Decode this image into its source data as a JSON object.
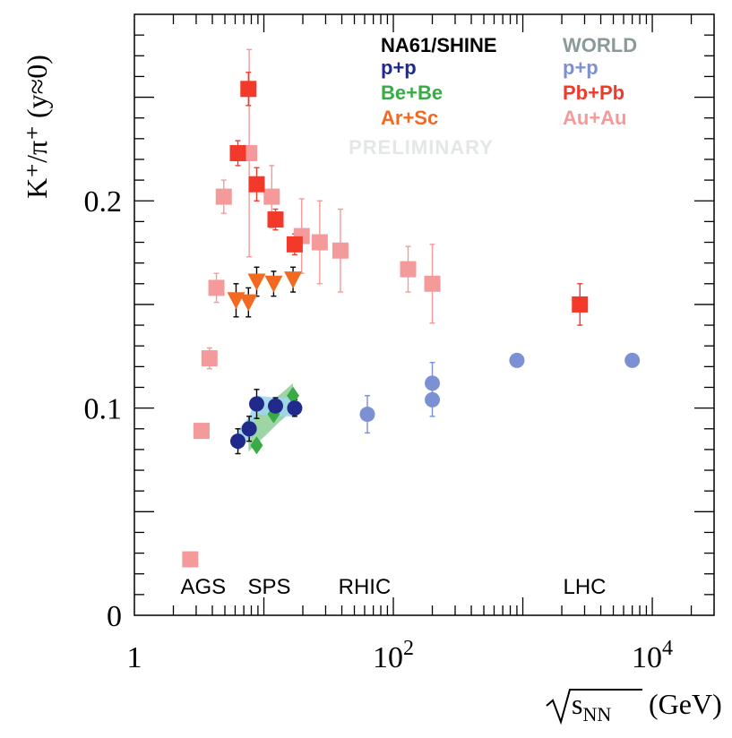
{
  "chart_data": {
    "type": "scatter",
    "title": "",
    "ylabel": "K⁺/π⁺ (y≈0)",
    "xlabel_unit": "(GeV)",
    "xlabel_sqrt": "s",
    "xlabel_sub": "NN",
    "x_scale": "log",
    "xlim": [
      1,
      30000
    ],
    "ylim": [
      0,
      0.29
    ],
    "x_ticks": [
      {
        "value": 1,
        "label": "1",
        "sup": ""
      },
      {
        "value": 100,
        "label": "10",
        "sup": "2"
      },
      {
        "value": 10000,
        "label": "10",
        "sup": "4"
      }
    ],
    "y_ticks": [
      {
        "value": 0,
        "label": "0"
      },
      {
        "value": 0.1,
        "label": "0.1"
      },
      {
        "value": 0.2,
        "label": "0.2"
      }
    ],
    "grid": false,
    "watermark": "PRELIMINARY",
    "legend": {
      "placement": "top-right",
      "headers": [
        {
          "text": "NA61/SHINE",
          "color": "#000000"
        },
        {
          "text": "WORLD",
          "color": "#8a9a9a"
        }
      ],
      "entries": [
        {
          "text": "p+p",
          "color": "#1f2a8a",
          "column": 0
        },
        {
          "text": "Be+Be",
          "color": "#3aaa48",
          "column": 0
        },
        {
          "text": "Ar+Sc",
          "color": "#f26a21",
          "column": 0
        },
        {
          "text": "p+p",
          "color": "#7c90d4",
          "column": 1
        },
        {
          "text": "Pb+Pb",
          "color": "#f2392a",
          "column": 1
        },
        {
          "text": "Au+Au",
          "color": "#f49a9a",
          "column": 1
        }
      ]
    },
    "regions": [
      {
        "label": "AGS",
        "x": 3.4
      },
      {
        "label": "SPS",
        "x": 11
      },
      {
        "label": "RHIC",
        "x": 60
      },
      {
        "label": "LHC",
        "x": 3000
      }
    ],
    "series": [
      {
        "name": "Au+Au",
        "marker": "square",
        "color": "#f49a9a",
        "points": [
          {
            "x": 2.7,
            "y": 0.027,
            "err": 0.002
          },
          {
            "x": 3.3,
            "y": 0.089,
            "err": 0.002
          },
          {
            "x": 3.8,
            "y": 0.124,
            "err": 0.005
          },
          {
            "x": 4.3,
            "y": 0.158,
            "err": 0.007
          },
          {
            "x": 4.9,
            "y": 0.202,
            "err": 0.008
          },
          {
            "x": 7.7,
            "y": 0.223,
            "err": 0.05
          },
          {
            "x": 11.5,
            "y": 0.202,
            "err": 0.015
          },
          {
            "x": 19.6,
            "y": 0.183,
            "err": 0.018
          },
          {
            "x": 27,
            "y": 0.18,
            "err": 0.02
          },
          {
            "x": 39,
            "y": 0.176,
            "err": 0.02
          },
          {
            "x": 130,
            "y": 0.167,
            "err": 0.011
          },
          {
            "x": 200,
            "y": 0.16,
            "err": 0.019
          }
        ]
      },
      {
        "name": "Pb+Pb",
        "marker": "square",
        "color": "#f2392a",
        "points": [
          {
            "x": 6.3,
            "y": 0.223,
            "err": 0.006
          },
          {
            "x": 7.6,
            "y": 0.254,
            "err": 0.008
          },
          {
            "x": 8.8,
            "y": 0.208,
            "err": 0.008
          },
          {
            "x": 12.3,
            "y": 0.191,
            "err": 0.005
          },
          {
            "x": 17.3,
            "y": 0.179,
            "err": 0.005
          },
          {
            "x": 2760,
            "y": 0.15,
            "err": 0.01
          }
        ]
      },
      {
        "name": "Ar+Sc",
        "marker": "triangle-down",
        "color": "#f26a21",
        "points": [
          {
            "x": 6.1,
            "y": 0.152,
            "err": 0.008
          },
          {
            "x": 7.6,
            "y": 0.151,
            "err": 0.007
          },
          {
            "x": 8.8,
            "y": 0.161,
            "err": 0.007
          },
          {
            "x": 11.9,
            "y": 0.16,
            "err": 0.006
          },
          {
            "x": 16.8,
            "y": 0.162,
            "err": 0.006
          }
        ]
      },
      {
        "name": "Be+Be",
        "marker": "diamond",
        "color": "#3aaa48",
        "band": [
          {
            "x": 7.6,
            "lo": 0.079,
            "hi": 0.094
          },
          {
            "x": 10,
            "lo": 0.086,
            "hi": 0.1
          },
          {
            "x": 13,
            "lo": 0.093,
            "hi": 0.106
          },
          {
            "x": 16.8,
            "lo": 0.099,
            "hi": 0.112
          }
        ],
        "points": [
          {
            "x": 7.6,
            "y": 0.09,
            "err": 0
          },
          {
            "x": 8.8,
            "y": 0.082,
            "err": 0
          },
          {
            "x": 11.9,
            "y": 0.097,
            "err": 0
          },
          {
            "x": 16.8,
            "y": 0.106,
            "err": 0
          }
        ]
      },
      {
        "name": "p+p",
        "marker": "circle",
        "color": "#1f2a8a",
        "band": [
          {
            "x": 6.3,
            "lo": 0.079,
            "hi": 0.089
          },
          {
            "x": 7.7,
            "lo": 0.085,
            "hi": 0.096
          },
          {
            "x": 8.8,
            "lo": 0.097,
            "hi": 0.106
          },
          {
            "x": 12.3,
            "lo": 0.096,
            "hi": 0.105
          },
          {
            "x": 17.3,
            "lo": 0.096,
            "hi": 0.105
          }
        ],
        "points": [
          {
            "x": 6.3,
            "y": 0.084,
            "err": 0.006
          },
          {
            "x": 7.7,
            "y": 0.09,
            "err": 0.006
          },
          {
            "x": 8.8,
            "y": 0.102,
            "err": 0.007
          },
          {
            "x": 12.3,
            "y": 0.101,
            "err": 0.004
          },
          {
            "x": 17.3,
            "y": 0.1,
            "err": 0.004
          }
        ]
      },
      {
        "name": "p+p",
        "marker": "circle",
        "color": "#7c90d4",
        "points": [
          {
            "x": 63,
            "y": 0.097,
            "err": 0.009
          },
          {
            "x": 200,
            "y": 0.104,
            "err": 0.008
          },
          {
            "x": 200,
            "y": 0.112,
            "err": 0.01
          },
          {
            "x": 900,
            "y": 0.123,
            "err": 0
          },
          {
            "x": 7000,
            "y": 0.123,
            "err": 0
          }
        ]
      }
    ]
  }
}
